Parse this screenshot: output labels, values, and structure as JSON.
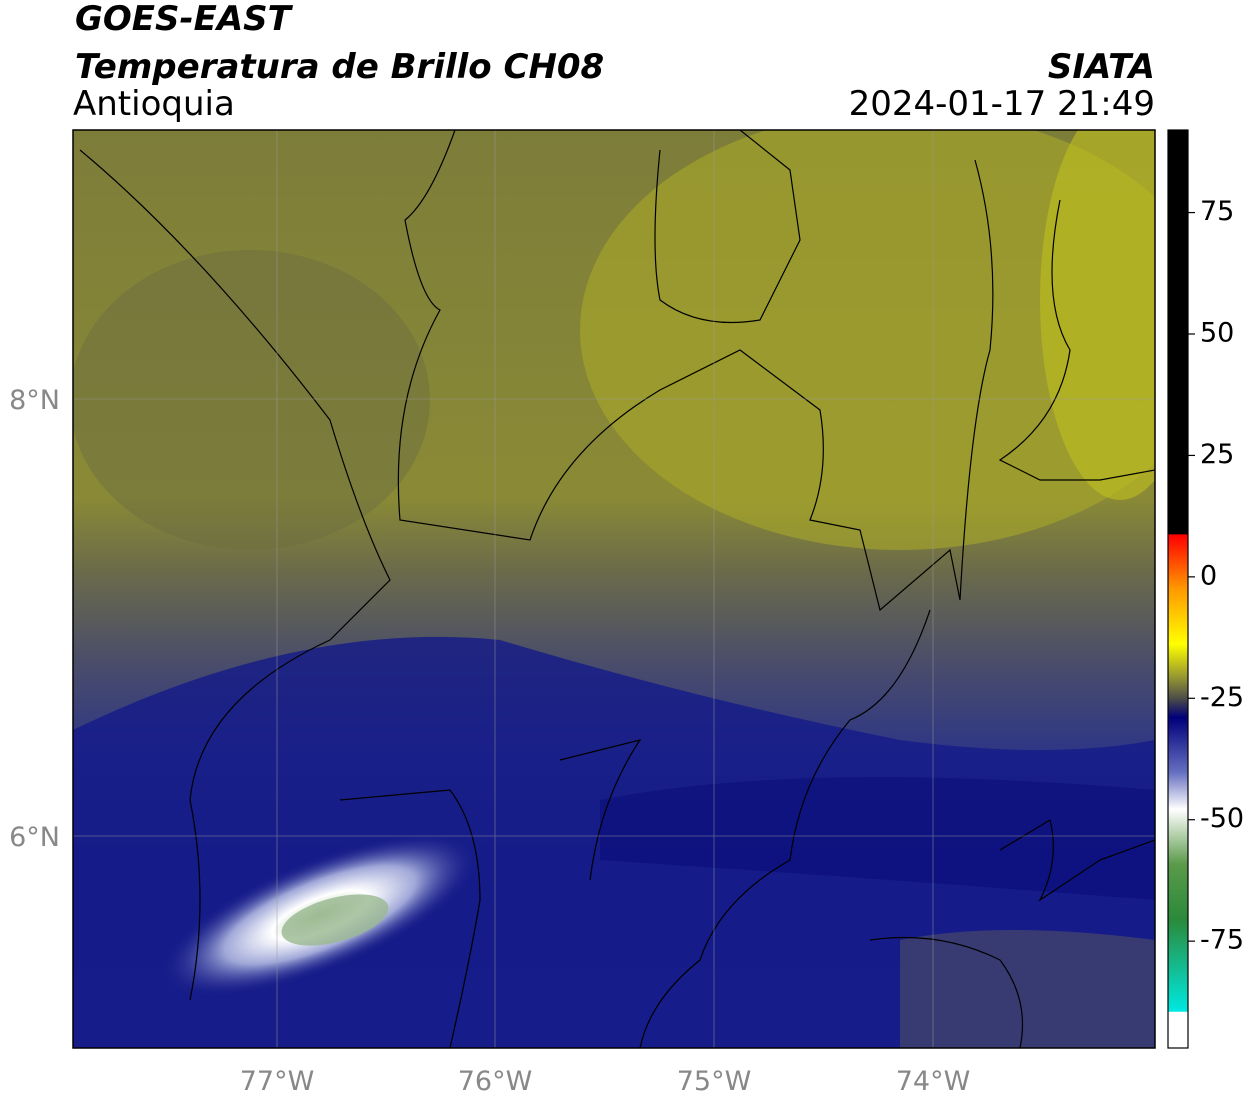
{
  "header": {
    "title": "GOES-EAST",
    "subtitle": "Temperatura de Brillo CH08",
    "region": "Antioquia",
    "source": "SIATA",
    "datetime": "2024-01-17 21:49"
  },
  "map": {
    "lat_labels": [
      "8°N",
      "6°N"
    ],
    "lon_labels": [
      "77°W",
      "76°W",
      "75°W",
      "74°W"
    ]
  },
  "colorbar": {
    "lim": [
      -97,
      92
    ],
    "ticks": [
      75,
      50,
      25,
      0,
      -25,
      -50,
      -75
    ]
  }
}
